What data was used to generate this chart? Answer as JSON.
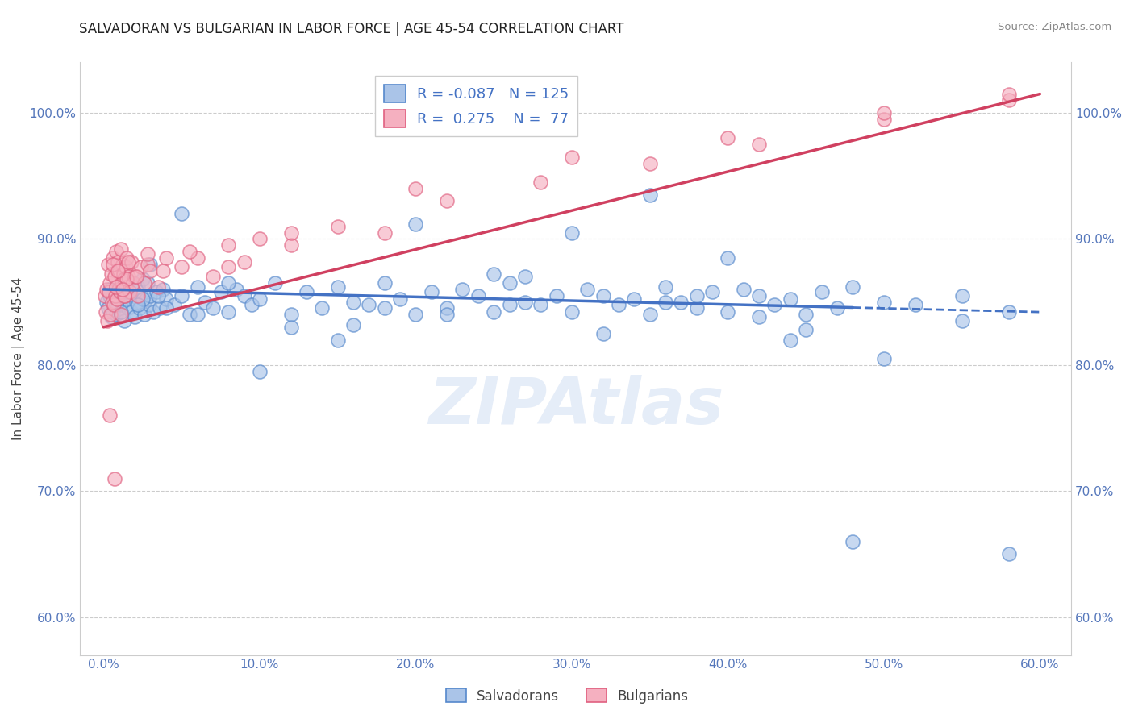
{
  "title": "SALVADORAN VS BULGARIAN IN LABOR FORCE | AGE 45-54 CORRELATION CHART",
  "source": "Source: ZipAtlas.com",
  "ylabel": "In Labor Force | Age 45-54",
  "x_tick_labels": [
    "0.0%",
    "10.0%",
    "20.0%",
    "30.0%",
    "40.0%",
    "50.0%",
    "60.0%"
  ],
  "x_tick_vals": [
    0.0,
    10.0,
    20.0,
    30.0,
    40.0,
    50.0,
    60.0
  ],
  "y_tick_labels": [
    "60.0%",
    "70.0%",
    "80.0%",
    "90.0%",
    "100.0%"
  ],
  "y_tick_vals": [
    60.0,
    70.0,
    80.0,
    90.0,
    100.0
  ],
  "xlim": [
    -1.5,
    62.0
  ],
  "ylim": [
    57.0,
    104.0
  ],
  "blue_R": -0.087,
  "blue_N": 125,
  "pink_R": 0.275,
  "pink_N": 77,
  "blue_color": "#aac4e8",
  "pink_color": "#f5b0c0",
  "blue_edge_color": "#5588cc",
  "pink_edge_color": "#e06080",
  "blue_line_color": "#4472c4",
  "pink_line_color": "#d04060",
  "watermark": "ZIPAtlas",
  "legend_blue_label": "Salvadorans",
  "legend_pink_label": "Bulgarians",
  "title_fontsize": 12,
  "axis_label_fontsize": 11,
  "tick_fontsize": 11,
  "blue_line_x0": 0.0,
  "blue_line_y0": 86.0,
  "blue_line_x1": 60.0,
  "blue_line_y1": 84.2,
  "blue_line_solid_end": 48.0,
  "pink_line_x0": 0.0,
  "pink_line_y0": 83.0,
  "pink_line_x1": 60.0,
  "pink_line_y1": 101.5,
  "blue_scatter_x": [
    0.2,
    0.3,
    0.4,
    0.5,
    0.6,
    0.7,
    0.8,
    0.9,
    1.0,
    1.1,
    1.2,
    1.3,
    1.4,
    1.5,
    1.6,
    1.7,
    1.8,
    1.9,
    2.0,
    2.1,
    2.2,
    2.3,
    2.4,
    2.5,
    2.6,
    2.7,
    2.8,
    2.9,
    3.0,
    3.2,
    3.4,
    3.6,
    3.8,
    4.0,
    4.5,
    5.0,
    5.5,
    6.0,
    6.5,
    7.0,
    7.5,
    8.0,
    8.5,
    9.0,
    9.5,
    10.0,
    11.0,
    12.0,
    13.0,
    14.0,
    15.0,
    16.0,
    17.0,
    18.0,
    19.0,
    20.0,
    21.0,
    22.0,
    23.0,
    24.0,
    25.0,
    26.0,
    27.0,
    28.0,
    29.0,
    30.0,
    31.0,
    32.0,
    33.0,
    34.0,
    35.0,
    36.0,
    37.0,
    38.0,
    39.0,
    40.0,
    41.0,
    42.0,
    43.0,
    44.0,
    45.0,
    46.0,
    47.0,
    48.0,
    50.0,
    52.0,
    55.0,
    58.0,
    30.0,
    20.0,
    15.0,
    40.0,
    10.0,
    5.0,
    35.0,
    25.0,
    45.0,
    50.0,
    55.0,
    58.0,
    12.0,
    18.0,
    27.0,
    38.0,
    44.0,
    8.0,
    3.0,
    22.0,
    32.0,
    42.0,
    48.0,
    16.0,
    36.0,
    26.0,
    6.0,
    4.0,
    2.5,
    1.5,
    0.8,
    0.4,
    0.6,
    1.1,
    2.2,
    3.5
  ],
  "blue_scatter_y": [
    85.0,
    84.5,
    85.5,
    83.8,
    84.2,
    85.8,
    84.0,
    86.2,
    85.5,
    84.8,
    86.5,
    83.5,
    85.2,
    86.0,
    84.5,
    85.8,
    84.2,
    86.5,
    83.8,
    85.0,
    86.2,
    84.5,
    85.5,
    86.8,
    84.0,
    85.2,
    86.5,
    84.8,
    85.5,
    84.2,
    85.8,
    84.5,
    86.0,
    85.2,
    84.8,
    85.5,
    84.0,
    86.2,
    85.0,
    84.5,
    85.8,
    84.2,
    86.0,
    85.5,
    84.8,
    85.2,
    86.5,
    84.0,
    85.8,
    84.5,
    86.2,
    85.0,
    84.8,
    86.5,
    85.2,
    84.0,
    85.8,
    84.5,
    86.0,
    85.5,
    84.2,
    86.5,
    85.0,
    84.8,
    85.5,
    84.2,
    86.0,
    85.5,
    84.8,
    85.2,
    84.0,
    86.2,
    85.0,
    84.5,
    85.8,
    84.2,
    86.0,
    85.5,
    84.8,
    85.2,
    84.0,
    85.8,
    84.5,
    86.2,
    85.0,
    84.8,
    85.5,
    84.2,
    90.5,
    91.2,
    82.0,
    88.5,
    79.5,
    92.0,
    93.5,
    87.2,
    82.8,
    80.5,
    83.5,
    65.0,
    83.0,
    84.5,
    87.0,
    85.5,
    82.0,
    86.5,
    88.0,
    84.0,
    82.5,
    83.8,
    66.0,
    83.2,
    85.0,
    84.8,
    84.0,
    84.5,
    85.2,
    85.8,
    84.8,
    86.0,
    85.5,
    84.2,
    84.8,
    85.5
  ],
  "pink_scatter_x": [
    0.1,
    0.15,
    0.2,
    0.25,
    0.3,
    0.35,
    0.4,
    0.45,
    0.5,
    0.55,
    0.6,
    0.65,
    0.7,
    0.75,
    0.8,
    0.85,
    0.9,
    0.95,
    1.0,
    1.05,
    1.1,
    1.15,
    1.2,
    1.25,
    1.3,
    1.35,
    1.4,
    1.45,
    1.5,
    1.6,
    1.7,
    1.8,
    1.9,
    2.0,
    2.2,
    2.4,
    2.6,
    2.8,
    3.0,
    3.5,
    4.0,
    5.0,
    6.0,
    7.0,
    8.0,
    9.0,
    10.0,
    12.0,
    15.0,
    18.0,
    22.0,
    28.0,
    35.0,
    42.0,
    50.0,
    58.0,
    1.1,
    1.3,
    1.5,
    0.8,
    0.6,
    0.9,
    1.2,
    1.6,
    2.1,
    2.8,
    3.8,
    5.5,
    8.0,
    12.0,
    20.0,
    30.0,
    40.0,
    50.0,
    58.0,
    0.4,
    0.7
  ],
  "pink_scatter_y": [
    85.5,
    84.2,
    86.0,
    83.5,
    88.0,
    85.8,
    86.5,
    84.0,
    87.2,
    85.0,
    88.5,
    84.8,
    87.0,
    85.5,
    89.0,
    85.2,
    88.2,
    86.0,
    87.5,
    85.8,
    89.2,
    86.5,
    88.0,
    87.2,
    86.8,
    85.5,
    87.8,
    86.2,
    88.5,
    87.0,
    85.8,
    88.2,
    86.5,
    87.0,
    85.5,
    87.8,
    86.5,
    88.0,
    87.5,
    86.2,
    88.5,
    87.8,
    88.5,
    87.0,
    89.5,
    88.2,
    90.0,
    89.5,
    91.0,
    90.5,
    93.0,
    94.5,
    96.0,
    97.5,
    99.5,
    101.0,
    84.0,
    85.5,
    86.8,
    86.2,
    88.0,
    87.5,
    86.0,
    88.2,
    87.0,
    88.8,
    87.5,
    89.0,
    87.8,
    90.5,
    94.0,
    96.5,
    98.0,
    100.0,
    101.5,
    76.0,
    71.0
  ]
}
